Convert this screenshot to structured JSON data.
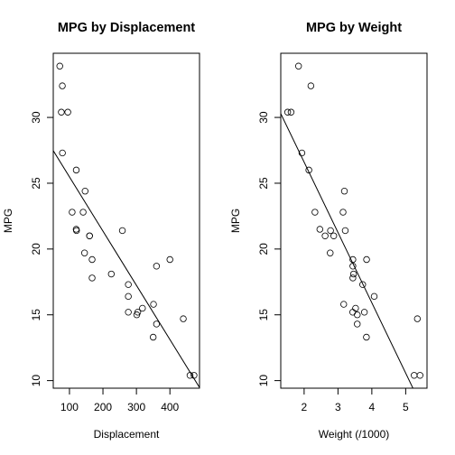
{
  "chart_data": [
    {
      "type": "scatter",
      "title": "MPG by Displacement",
      "xlabel": "Displacement",
      "ylabel": "MPG",
      "xlim": [
        51.6,
        488.4
      ],
      "ylim": [
        9.424,
        34.876
      ],
      "xticks": [
        100,
        200,
        300,
        400
      ],
      "yticks": [
        10,
        15,
        20,
        25,
        30
      ],
      "regression_line": {
        "intercept": 29.6,
        "slope": -0.0412
      },
      "points": [
        {
          "x": 160,
          "y": 21.0
        },
        {
          "x": 160,
          "y": 21.0
        },
        {
          "x": 108,
          "y": 22.8
        },
        {
          "x": 258,
          "y": 21.4
        },
        {
          "x": 360,
          "y": 18.7
        },
        {
          "x": 225,
          "y": 18.1
        },
        {
          "x": 360,
          "y": 14.3
        },
        {
          "x": 146.7,
          "y": 24.4
        },
        {
          "x": 140.8,
          "y": 22.8
        },
        {
          "x": 167.6,
          "y": 19.2
        },
        {
          "x": 167.6,
          "y": 17.8
        },
        {
          "x": 275.8,
          "y": 16.4
        },
        {
          "x": 275.8,
          "y": 17.3
        },
        {
          "x": 275.8,
          "y": 15.2
        },
        {
          "x": 472,
          "y": 10.4
        },
        {
          "x": 460,
          "y": 10.4
        },
        {
          "x": 440,
          "y": 14.7
        },
        {
          "x": 78.7,
          "y": 32.4
        },
        {
          "x": 75.7,
          "y": 30.4
        },
        {
          "x": 71.1,
          "y": 33.9
        },
        {
          "x": 120.1,
          "y": 21.5
        },
        {
          "x": 318,
          "y": 15.5
        },
        {
          "x": 304,
          "y": 15.2
        },
        {
          "x": 350,
          "y": 13.3
        },
        {
          "x": 400,
          "y": 19.2
        },
        {
          "x": 79,
          "y": 27.3
        },
        {
          "x": 120.3,
          "y": 26.0
        },
        {
          "x": 95.1,
          "y": 30.4
        },
        {
          "x": 351,
          "y": 15.8
        },
        {
          "x": 145,
          "y": 19.7
        },
        {
          "x": 301,
          "y": 15.0
        },
        {
          "x": 121,
          "y": 21.4
        }
      ]
    },
    {
      "type": "scatter",
      "title": "MPG by Weight",
      "xlabel": "Weight (/1000)",
      "ylabel": "MPG",
      "xlim": [
        1.31,
        5.63
      ],
      "ylim": [
        9.424,
        34.876
      ],
      "xticks": [
        2,
        3,
        4,
        5
      ],
      "yticks": [
        10,
        15,
        20,
        25,
        30
      ],
      "regression_line": {
        "intercept": 37.29,
        "slope": -5.344
      },
      "points": [
        {
          "x": 2.62,
          "y": 21.0
        },
        {
          "x": 2.875,
          "y": 21.0
        },
        {
          "x": 2.32,
          "y": 22.8
        },
        {
          "x": 3.215,
          "y": 21.4
        },
        {
          "x": 3.44,
          "y": 18.7
        },
        {
          "x": 3.46,
          "y": 18.1
        },
        {
          "x": 3.57,
          "y": 14.3
        },
        {
          "x": 3.19,
          "y": 24.4
        },
        {
          "x": 3.15,
          "y": 22.8
        },
        {
          "x": 3.44,
          "y": 19.2
        },
        {
          "x": 3.44,
          "y": 17.8
        },
        {
          "x": 4.07,
          "y": 16.4
        },
        {
          "x": 3.73,
          "y": 17.3
        },
        {
          "x": 3.78,
          "y": 15.2
        },
        {
          "x": 5.25,
          "y": 10.4
        },
        {
          "x": 5.424,
          "y": 10.4
        },
        {
          "x": 5.345,
          "y": 14.7
        },
        {
          "x": 2.2,
          "y": 32.4
        },
        {
          "x": 1.615,
          "y": 30.4
        },
        {
          "x": 1.835,
          "y": 33.9
        },
        {
          "x": 2.465,
          "y": 21.5
        },
        {
          "x": 3.52,
          "y": 15.5
        },
        {
          "x": 3.435,
          "y": 15.2
        },
        {
          "x": 3.84,
          "y": 13.3
        },
        {
          "x": 3.845,
          "y": 19.2
        },
        {
          "x": 1.935,
          "y": 27.3
        },
        {
          "x": 2.14,
          "y": 26.0
        },
        {
          "x": 1.513,
          "y": 30.4
        },
        {
          "x": 3.17,
          "y": 15.8
        },
        {
          "x": 2.77,
          "y": 19.7
        },
        {
          "x": 3.57,
          "y": 15.0
        },
        {
          "x": 2.78,
          "y": 21.4
        }
      ]
    }
  ]
}
